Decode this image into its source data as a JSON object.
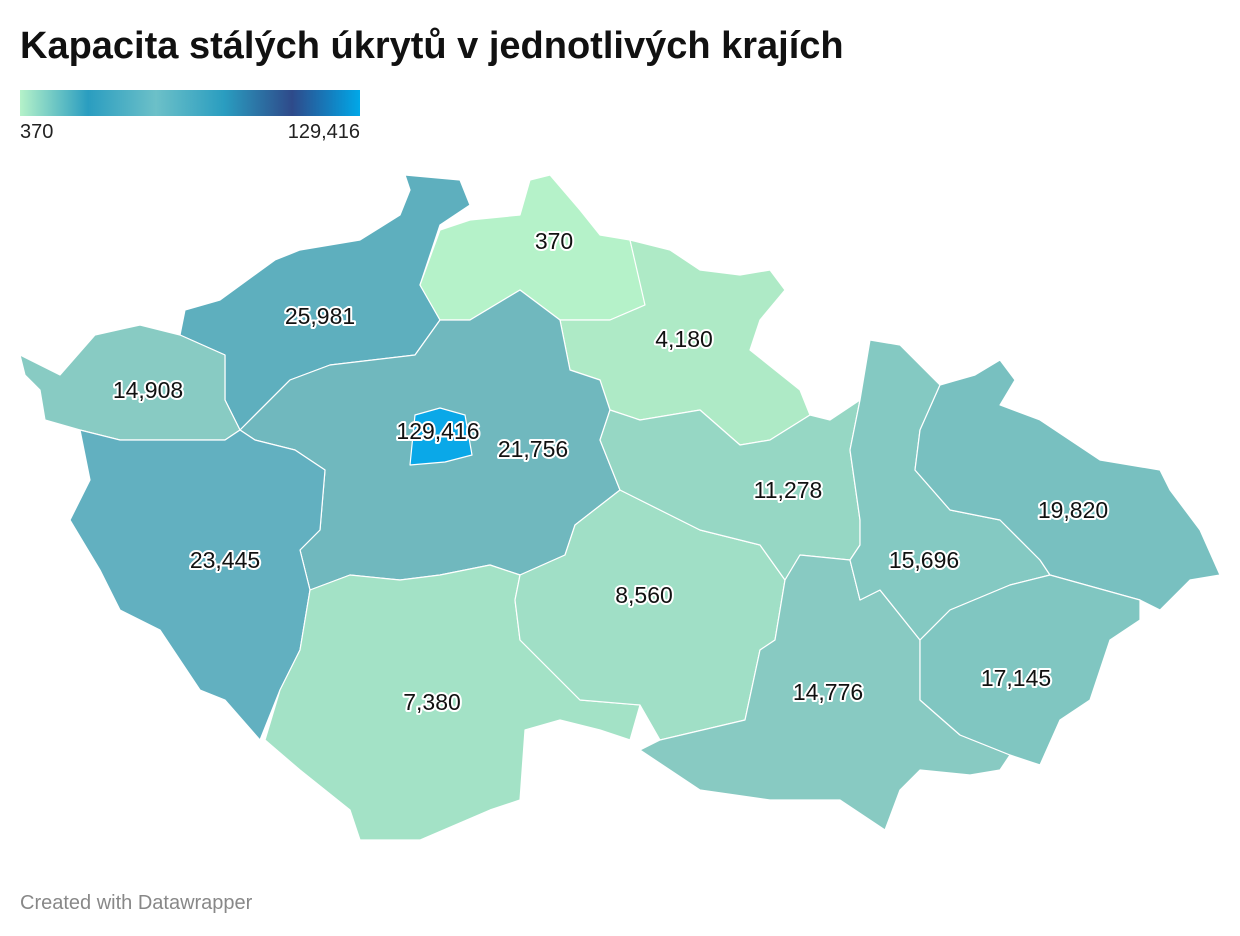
{
  "chart_data": {
    "type": "choropleth",
    "title": "Kapacita stálých úkrytů v jednotlivých krajích",
    "legend": {
      "min": 370,
      "max": {
        "value": 129416,
        "label": "129,416"
      }
    },
    "legend_colors": [
      "#b5f2c9",
      "#2a9dc0",
      "#6cc0c8",
      "#2a9dc0",
      "#2e4a8a",
      "#00a8e8"
    ],
    "values": [
      370,
      4180,
      25981,
      14908,
      129416,
      21756,
      11278,
      19820,
      23445,
      15696,
      8560,
      14776,
      17145,
      7380
    ],
    "value_labels": [
      "370",
      "4,180",
      "25,981",
      "14,908",
      "129,416",
      "21,756",
      "11,278",
      "19,820",
      "23,445",
      "15,696",
      "8,560",
      "14,776",
      "17,145",
      "7,380"
    ],
    "colors": [
      "#b5f2c9",
      "#aeeac6",
      "#5eafbe",
      "#88cbc3",
      "#0aa8e8",
      "#70b8be",
      "#96d7c4",
      "#78c0c0",
      "#62b0c0",
      "#84c9c2",
      "#a0dfc6",
      "#88cac2",
      "#80c6c1",
      "#a3e2c6"
    ],
    "credit": "Created with Datawrapper"
  }
}
